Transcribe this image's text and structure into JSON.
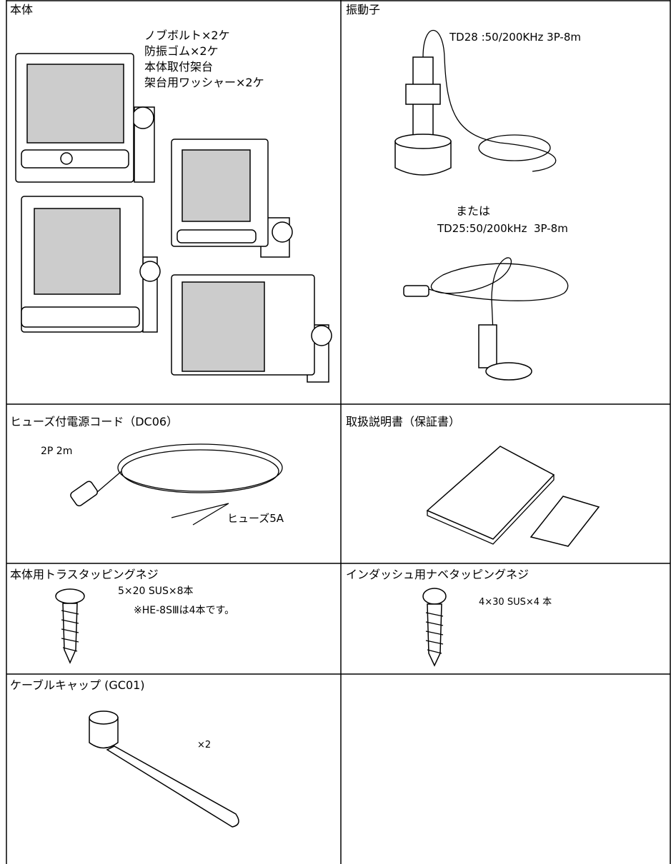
{
  "table": {
    "cells": [
      {
        "title": "本体",
        "notes": [
          "ノブボルト×2ケ",
          "防振ゴム×2ケ",
          "本体取付架台",
          "架台用ワッシャー×2ケ"
        ]
      },
      {
        "title": "振動子",
        "notes": [
          "TD28 :50/200KHz 3P-8m",
          "または",
          "TD25:50/200kHz  3P-8m"
        ]
      },
      {
        "title": "ヒューズ付電源コード（DC06）",
        "notes": [
          "2P 2m",
          "ヒューズ5A"
        ]
      },
      {
        "title": "取扱説明書（保証書）",
        "notes": []
      },
      {
        "title": "本体用トラスタッピングネジ",
        "notes": [
          "5×20 SUS×8本",
          "※HE-8SⅢは4本です。"
        ]
      },
      {
        "title": "インダッシュ用ナベタッピングネジ",
        "notes": [
          "4×30 SUS×4 本"
        ]
      },
      {
        "title": "ケーブルキャップ (GC01)",
        "notes": [
          "×2"
        ]
      }
    ]
  }
}
